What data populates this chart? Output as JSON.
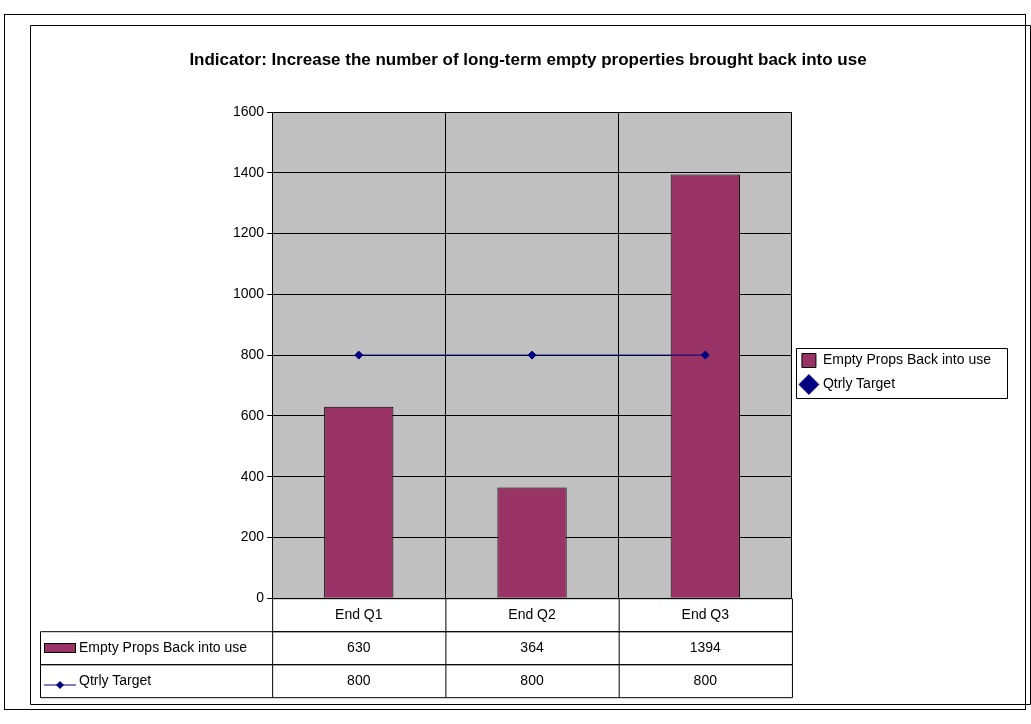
{
  "chart_data": {
    "type": "bar",
    "title": "Indicator: Increase the number of long-term empty properties brought back into use",
    "categories": [
      "End Q1",
      "End Q2",
      "End Q3"
    ],
    "series": [
      {
        "name": "Empty Props Back into use",
        "color": "#993366",
        "values": [
          630,
          364,
          1394
        ]
      },
      {
        "name": "Qtrly Target",
        "type": "line",
        "color": "#000080",
        "values": [
          800,
          800,
          800
        ]
      }
    ],
    "ylim": [
      0,
      1600
    ],
    "yticks": [
      0,
      200,
      400,
      600,
      800,
      1000,
      1200,
      1400,
      1600
    ],
    "grid": true,
    "legend": "right",
    "marker": "diamond",
    "data_labels": true
  }
}
